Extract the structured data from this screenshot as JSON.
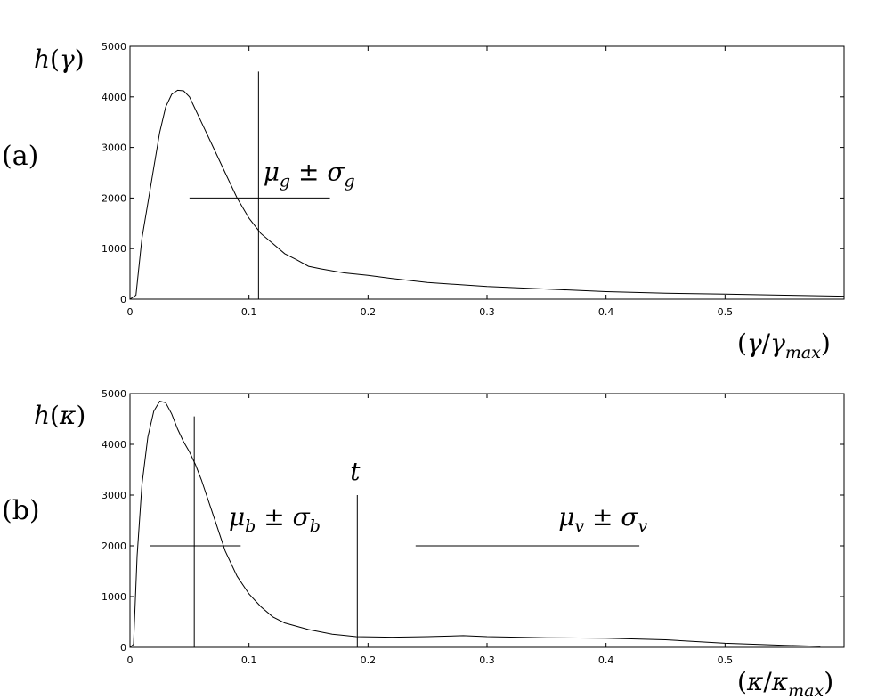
{
  "chart_data": [
    {
      "type": "line",
      "panel_label": "(a)",
      "ylabel": "h(γ)",
      "xlabel": "(γ/γmax)",
      "xlim": [
        0,
        0.6
      ],
      "ylim": [
        0,
        5000
      ],
      "x_ticks": [
        "0",
        "0.1",
        "0.2",
        "0.3",
        "0.4",
        "0.5"
      ],
      "y_ticks": [
        "0",
        "1000",
        "2000",
        "3000",
        "4000",
        "5000"
      ],
      "grid": false,
      "series": [
        {
          "x": [
            0,
            0.005,
            0.01,
            0.015,
            0.02,
            0.025,
            0.03,
            0.035,
            0.04,
            0.045,
            0.05,
            0.055,
            0.06,
            0.07,
            0.08,
            0.09,
            0.1,
            0.11,
            0.12,
            0.13,
            0.14,
            0.15,
            0.16,
            0.18,
            0.2,
            0.22,
            0.25,
            0.3,
            0.35,
            0.4,
            0.45,
            0.5,
            0.55,
            0.6
          ],
          "y": [
            0,
            80,
            1200,
            1900,
            2600,
            3300,
            3800,
            4050,
            4130,
            4120,
            4000,
            3750,
            3500,
            3000,
            2500,
            2000,
            1600,
            1300,
            1100,
            900,
            780,
            650,
            600,
            520,
            470,
            410,
            330,
            250,
            200,
            150,
            120,
            100,
            80,
            60
          ]
        }
      ],
      "annotations": [
        {
          "kind": "vline",
          "x": 0.108,
          "y1": 0,
          "y2": 4500
        },
        {
          "kind": "hline",
          "y": 2000,
          "x1": 0.05,
          "x2": 0.168
        },
        {
          "kind": "text",
          "text": "μg ± σg",
          "x": 0.112,
          "y": 2350
        }
      ]
    },
    {
      "type": "line",
      "panel_label": "(b)",
      "ylabel": "h(κ)",
      "xlabel": "(κ/κmax)",
      "xlim": [
        0,
        0.6
      ],
      "ylim": [
        0,
        5000
      ],
      "x_ticks": [
        "0",
        "0.1",
        "0.2",
        "0.3",
        "0.4",
        "0.5"
      ],
      "y_ticks": [
        "0",
        "1000",
        "2000",
        "3000",
        "4000",
        "5000"
      ],
      "grid": false,
      "series": [
        {
          "x": [
            0,
            0.003,
            0.006,
            0.01,
            0.015,
            0.02,
            0.025,
            0.03,
            0.035,
            0.04,
            0.045,
            0.05,
            0.055,
            0.06,
            0.07,
            0.08,
            0.09,
            0.1,
            0.11,
            0.12,
            0.13,
            0.15,
            0.17,
            0.19,
            0.22,
            0.25,
            0.28,
            0.3,
            0.35,
            0.4,
            0.45,
            0.5,
            0.55,
            0.58
          ],
          "y": [
            0,
            60,
            1800,
            3200,
            4150,
            4650,
            4850,
            4820,
            4600,
            4300,
            4050,
            3850,
            3600,
            3300,
            2600,
            1900,
            1400,
            1050,
            800,
            600,
            480,
            350,
            260,
            210,
            200,
            210,
            230,
            210,
            190,
            180,
            150,
            80,
            40,
            20
          ]
        }
      ],
      "annotations": [
        {
          "kind": "vline",
          "x": 0.054,
          "y1": 0,
          "y2": 4550
        },
        {
          "kind": "hline",
          "y": 2000,
          "x1": 0.017,
          "x2": 0.093
        },
        {
          "kind": "text",
          "text": "μb ± σb",
          "x": 0.083,
          "y": 2400
        },
        {
          "kind": "vline",
          "x": 0.191,
          "y1": 0,
          "y2": 3000
        },
        {
          "kind": "text",
          "text": "t",
          "x": 0.185,
          "y": 3300
        },
        {
          "kind": "hline",
          "y": 2000,
          "x1": 0.24,
          "x2": 0.428
        },
        {
          "kind": "text",
          "text": "μv ± σv",
          "x": 0.36,
          "y": 2400
        }
      ]
    }
  ]
}
